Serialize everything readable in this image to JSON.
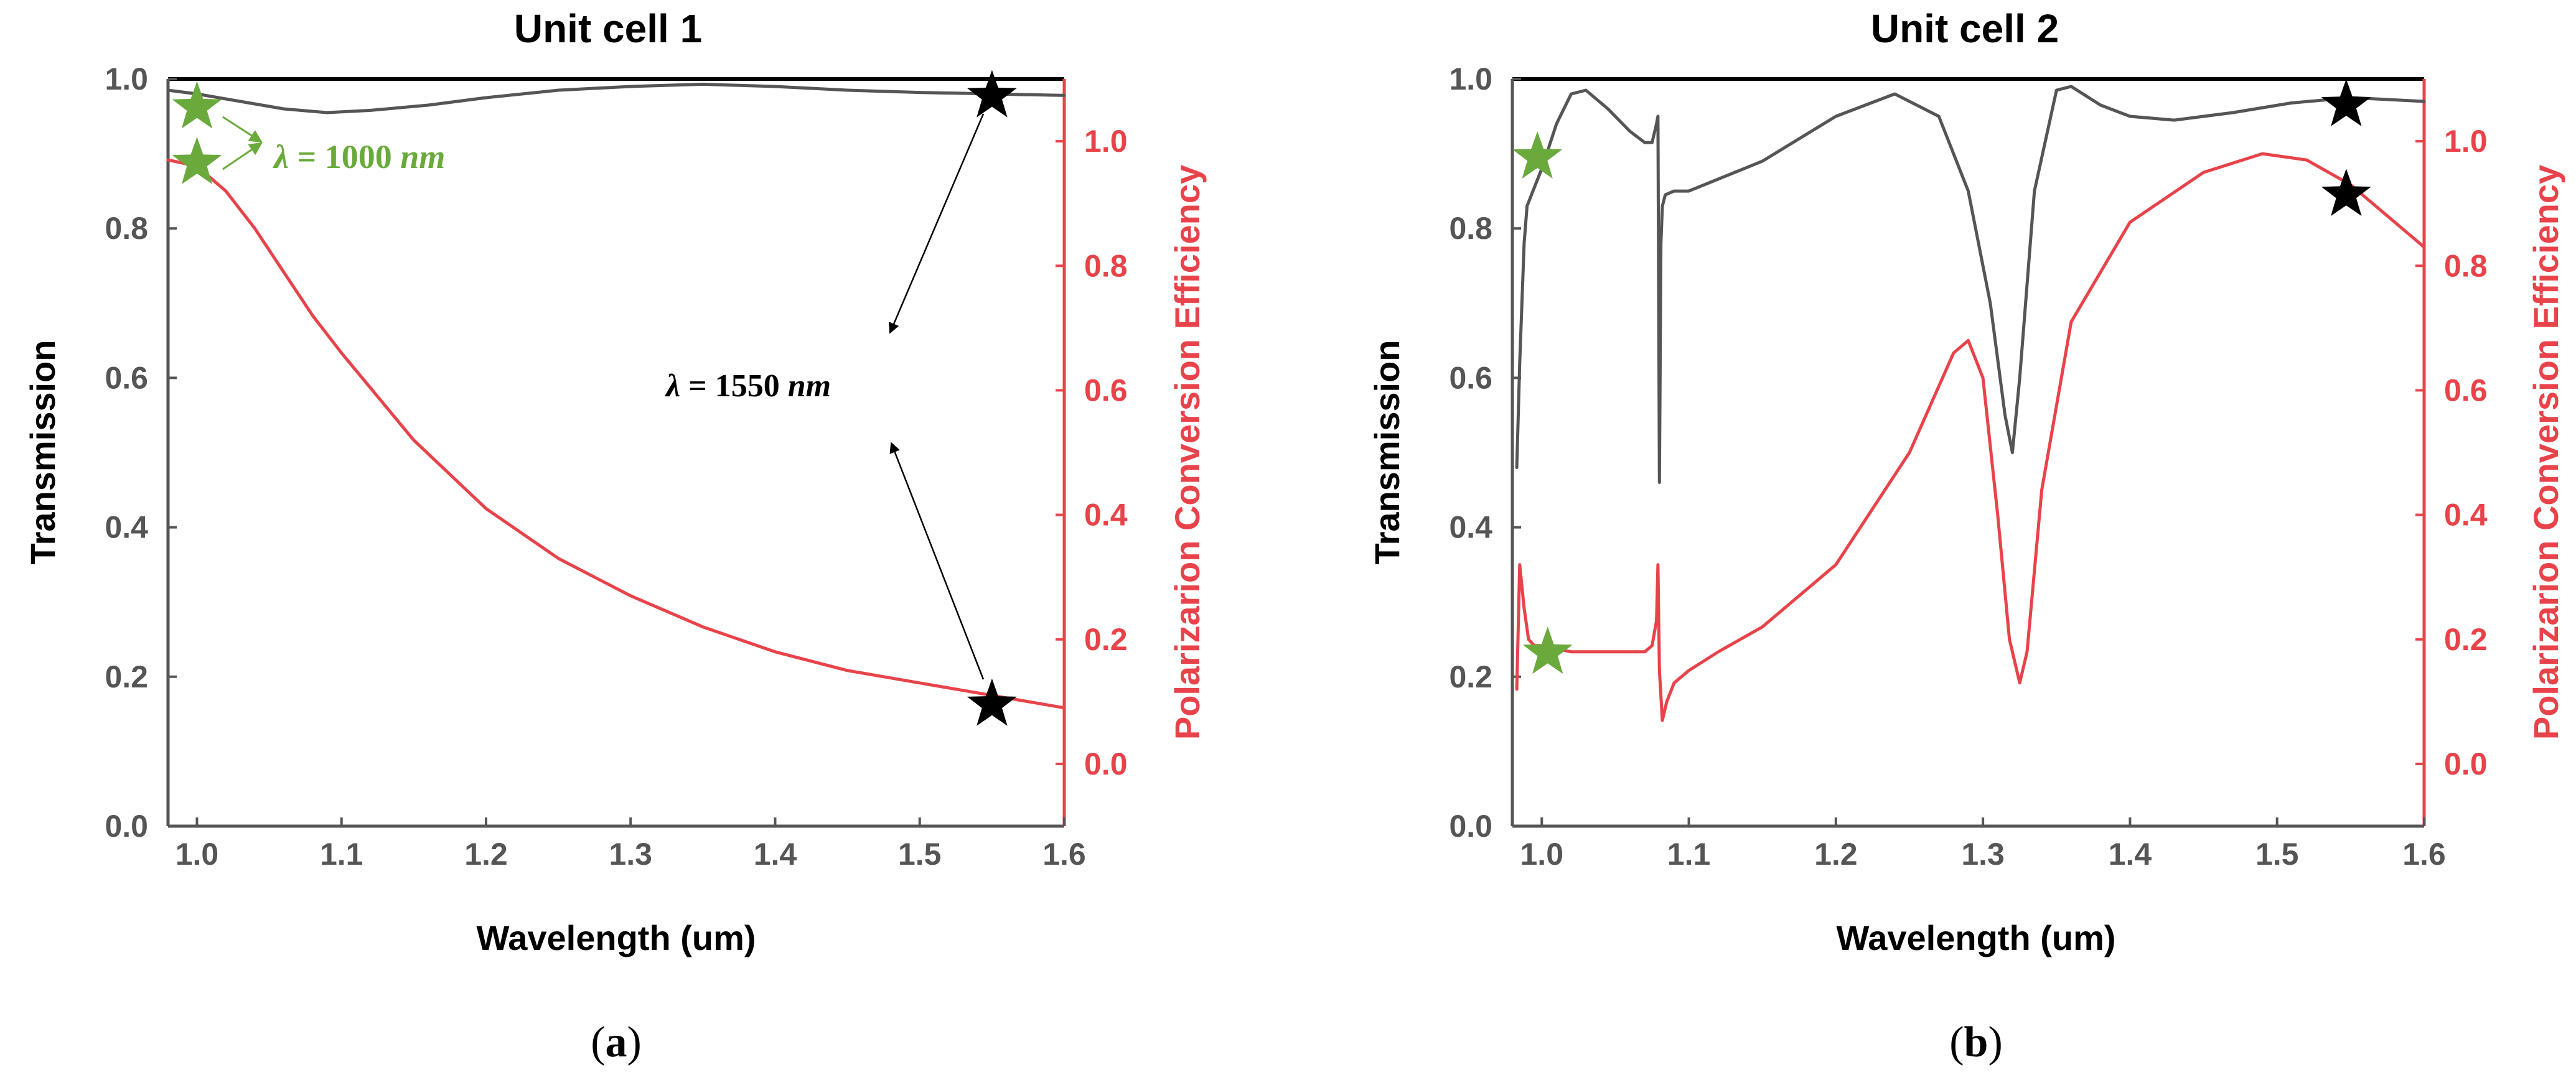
{
  "colors": {
    "transmission": "#555555",
    "pce": "#e8434a",
    "pce_axis": "#e8434a",
    "green_star": "#6aaa3c",
    "black_star": "#000000",
    "frame": "#000000"
  },
  "chart_data": [
    {
      "type": "line",
      "panel_label": "(a)",
      "panel_letter": "a",
      "title": "Unit cell 1",
      "xlabel": "Wavelength (um)",
      "ylabel": "Transmission",
      "y2label": "Polarizarion Conversion Efficiency",
      "xlim": [
        0.98,
        1.6
      ],
      "ylim": [
        0.0,
        1.0
      ],
      "y2lim": [
        -0.1,
        1.1
      ],
      "xticks": [
        1.0,
        1.1,
        1.2,
        1.3,
        1.4,
        1.5,
        1.6
      ],
      "xtick_labels": [
        "1.0",
        "1.1",
        "1.2",
        "1.3",
        "1.4",
        "1.5",
        "1.6"
      ],
      "yticks": [
        0.0,
        0.2,
        0.4,
        0.6,
        0.8,
        1.0
      ],
      "ytick_labels": [
        "0.0",
        "0.2",
        "0.4",
        "0.6",
        "0.8",
        "1.0"
      ],
      "y2ticks": [
        0.0,
        0.2,
        0.4,
        0.6,
        0.8,
        1.0
      ],
      "y2tick_labels": [
        "0.0",
        "0.2",
        "0.4",
        "0.6",
        "0.8",
        "1.0"
      ],
      "series": [
        {
          "name": "Transmission",
          "axis": "left",
          "x": [
            0.98,
            1.0,
            1.03,
            1.06,
            1.09,
            1.12,
            1.16,
            1.2,
            1.25,
            1.3,
            1.35,
            1.4,
            1.45,
            1.5,
            1.55,
            1.6
          ],
          "y": [
            0.985,
            0.98,
            0.97,
            0.96,
            0.955,
            0.958,
            0.965,
            0.975,
            0.985,
            0.99,
            0.993,
            0.99,
            0.985,
            0.982,
            0.98,
            0.978
          ]
        },
        {
          "name": "Polarizarion Conversion Efficiency",
          "axis": "right",
          "x": [
            0.98,
            1.0,
            1.02,
            1.04,
            1.06,
            1.08,
            1.1,
            1.15,
            1.2,
            1.25,
            1.3,
            1.35,
            1.4,
            1.45,
            1.5,
            1.55,
            1.6
          ],
          "y": [
            0.97,
            0.96,
            0.92,
            0.86,
            0.79,
            0.72,
            0.66,
            0.52,
            0.41,
            0.33,
            0.27,
            0.22,
            0.18,
            0.15,
            0.13,
            0.11,
            0.09
          ]
        }
      ],
      "markers": [
        {
          "color": "green",
          "x": 1.0,
          "y": 0.962,
          "axis": "left"
        },
        {
          "color": "green",
          "x": 1.0,
          "y": 0.965,
          "axis": "right"
        },
        {
          "color": "black",
          "x": 1.55,
          "y": 0.977,
          "axis": "left"
        },
        {
          "color": "black",
          "x": 1.55,
          "y": 0.095,
          "axis": "right"
        }
      ],
      "annotations": [
        {
          "text_lhs": "λ",
          "text_rest": " = 1000 ",
          "text_unit": "nm",
          "color": "green"
        },
        {
          "text_lhs": "λ",
          "text_rest": " = 1550 ",
          "text_unit": "nm",
          "color": "black"
        }
      ]
    },
    {
      "type": "line",
      "panel_label": "(b)",
      "panel_letter": "b",
      "title": "Unit cell 2",
      "xlabel": "Wavelength (um)",
      "ylabel": "Transmission",
      "y2label": "Polarizarion Conversion Efficiency",
      "xlim": [
        0.98,
        1.6
      ],
      "ylim": [
        0.0,
        1.0
      ],
      "y2lim": [
        -0.1,
        1.1
      ],
      "xticks": [
        1.0,
        1.1,
        1.2,
        1.3,
        1.4,
        1.5,
        1.6
      ],
      "xtick_labels": [
        "1.0",
        "1.1",
        "1.2",
        "1.3",
        "1.4",
        "1.5",
        "1.6"
      ],
      "yticks": [
        0.0,
        0.2,
        0.4,
        0.6,
        0.8,
        1.0
      ],
      "ytick_labels": [
        "0.0",
        "0.2",
        "0.4",
        "0.6",
        "0.8",
        "1.0"
      ],
      "y2ticks": [
        0.0,
        0.2,
        0.4,
        0.6,
        0.8,
        1.0
      ],
      "y2tick_labels": [
        "0.0",
        "0.2",
        "0.4",
        "0.6",
        "0.8",
        "1.0"
      ],
      "series": [
        {
          "name": "Transmission",
          "axis": "left",
          "x": [
            0.983,
            0.985,
            0.988,
            0.99,
            1.0,
            1.01,
            1.02,
            1.03,
            1.045,
            1.06,
            1.07,
            1.075,
            1.078,
            1.079,
            1.08,
            1.081,
            1.082,
            1.084,
            1.09,
            1.1,
            1.15,
            1.2,
            1.24,
            1.27,
            1.29,
            1.305,
            1.315,
            1.32,
            1.325,
            1.335,
            1.35,
            1.36,
            1.38,
            1.4,
            1.43,
            1.47,
            1.51,
            1.55,
            1.6
          ],
          "y": [
            0.48,
            0.62,
            0.78,
            0.83,
            0.88,
            0.94,
            0.98,
            0.985,
            0.96,
            0.93,
            0.915,
            0.915,
            0.94,
            0.95,
            0.46,
            0.78,
            0.83,
            0.845,
            0.85,
            0.85,
            0.89,
            0.95,
            0.98,
            0.95,
            0.85,
            0.7,
            0.55,
            0.5,
            0.6,
            0.85,
            0.985,
            0.99,
            0.965,
            0.95,
            0.945,
            0.955,
            0.968,
            0.975,
            0.97
          ]
        },
        {
          "name": "Polarizarion Conversion Efficiency",
          "axis": "right",
          "x": [
            0.983,
            0.985,
            0.988,
            0.991,
            0.995,
            1.0,
            1.02,
            1.05,
            1.07,
            1.075,
            1.078,
            1.079,
            1.08,
            1.082,
            1.085,
            1.09,
            1.1,
            1.12,
            1.15,
            1.2,
            1.25,
            1.28,
            1.29,
            1.3,
            1.31,
            1.318,
            1.325,
            1.33,
            1.34,
            1.36,
            1.4,
            1.45,
            1.49,
            1.52,
            1.55,
            1.6
          ],
          "y": [
            0.12,
            0.32,
            0.25,
            0.2,
            0.19,
            0.19,
            0.18,
            0.18,
            0.18,
            0.19,
            0.23,
            0.32,
            0.15,
            0.07,
            0.1,
            0.13,
            0.15,
            0.18,
            0.22,
            0.32,
            0.5,
            0.66,
            0.68,
            0.62,
            0.4,
            0.2,
            0.13,
            0.18,
            0.44,
            0.71,
            0.87,
            0.95,
            0.98,
            0.97,
            0.93,
            0.83
          ]
        }
      ],
      "markers": [
        {
          "color": "green",
          "x": 0.997,
          "y": 0.895,
          "axis": "left"
        },
        {
          "color": "green",
          "x": 1.004,
          "y": 0.232,
          "axis": "left"
        },
        {
          "color": "black",
          "x": 1.547,
          "y": 0.965,
          "axis": "left"
        },
        {
          "color": "black",
          "x": 1.547,
          "y": 0.845,
          "axis": "left"
        }
      ]
    }
  ]
}
